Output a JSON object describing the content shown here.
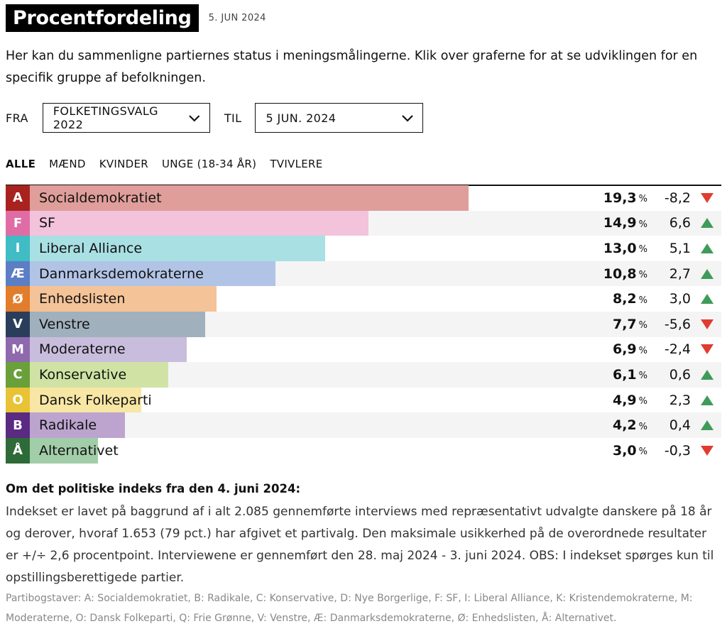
{
  "header": {
    "title": "Procentfordeling",
    "date": "5. JUN 2024"
  },
  "intro": "Her kan du sammenligne partiernes status i meningsmålingerne. Klik over graferne for at se udviklingen for en specifik gruppe af befolkningen.",
  "filters": {
    "from_label": "FRA",
    "from_value": "FOLKETINGSVALG 2022",
    "to_label": "TIL",
    "to_value": "5 JUN. 2024"
  },
  "tabs": [
    "ALLE",
    "MÆND",
    "KVINDER",
    "UNGE (18-34 ÅR)",
    "TVIVLERE"
  ],
  "active_tab": "ALLE",
  "colors": {
    "up": "#3e9b5a",
    "down": "#e23b30"
  },
  "chart_data": {
    "type": "bar",
    "orientation": "horizontal",
    "unit": "%",
    "categories": [
      "Socialdemokratiet",
      "SF",
      "Liberal Alliance",
      "Danmarksdemokraterne",
      "Enhedslisten",
      "Venstre",
      "Moderaterne",
      "Konservative",
      "Dansk Folkeparti",
      "Radikale",
      "Alternativet"
    ],
    "letters": [
      "A",
      "F",
      "I",
      "Æ",
      "Ø",
      "V",
      "M",
      "C",
      "O",
      "B",
      "Å"
    ],
    "values": [
      "19,3",
      "14,9",
      "13,0",
      "10,8",
      "8,2",
      "7,7",
      "6,9",
      "6,1",
      "4,9",
      "4,2",
      "3,0"
    ],
    "changes": [
      "-8,2",
      "6,6",
      "5,1",
      "2,7",
      "3,0",
      "-5,6",
      "-2,4",
      "0,6",
      "2,3",
      "0,4",
      "-0,3"
    ],
    "directions": [
      "down",
      "up",
      "up",
      "up",
      "up",
      "down",
      "down",
      "up",
      "up",
      "up",
      "down"
    ],
    "letter_colors": [
      "#a8231f",
      "#e06ca6",
      "#3fbcc4",
      "#5c7ec4",
      "#e27d2c",
      "#2a3e5c",
      "#8e69ad",
      "#6aa03b",
      "#e8c336",
      "#5b2a82",
      "#2e6b38"
    ],
    "bar_colors": [
      "#df9e9a",
      "#f2c3db",
      "#a8e0e3",
      "#b2c4e6",
      "#f4c398",
      "#a1b0bd",
      "#c9bddd",
      "#d0e3a4",
      "#f8e6a4",
      "#bca4cf",
      "#a2cda9"
    ]
  },
  "notes": {
    "heading": "Om det politiske indeks fra den 4. juni 2024:",
    "body": "Indekset er lavet på baggrund af i alt 2.085 gennemførte interviews med repræsentativt udvalgte danskere på 18 år og derover, hvoraf 1.653 (79 pct.) har afgivet et partivalg. Den maksimale usikkerhed på de overordnede resultater er +/÷ 2,6 procentpoint. Interviewene er gennemført den 28. maj 2024 - 3. juni 2024. OBS: I indekset spørges kun til opstillingsberettigede partier.",
    "footnote": "Partibogstaver: A: Socialdemokratiet, B: Radikale, C: Konservative, D: Nye Borgerlige, F: SF, I: Liberal Alliance, K: Kristendemokraterne, M: Moderaterne, O: Dansk Folkeparti, Q: Frie Grønne, V: Venstre, Æ: Danmarksdemokraterne, Ø: Enhedslisten, Å: Alternativet."
  }
}
